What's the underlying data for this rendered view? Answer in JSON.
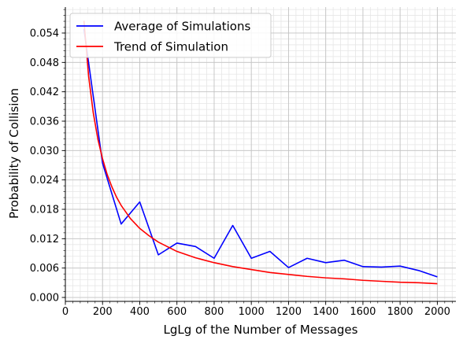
{
  "chart_data": {
    "type": "line",
    "xlabel": "LgLg of the Number of Messages",
    "ylabel": "Probability of Collision",
    "xlim": [
      0,
      2100
    ],
    "ylim": [
      -0.0008,
      0.0593
    ],
    "x_ticks": [
      0,
      200,
      400,
      600,
      800,
      1000,
      1200,
      1400,
      1600,
      1800,
      2000
    ],
    "y_ticks": [
      0.0,
      0.006,
      0.012,
      0.018,
      0.024,
      0.03,
      0.036,
      0.042,
      0.048,
      0.054
    ],
    "x_tick_labels": [
      "0",
      "200",
      "400",
      "600",
      "800",
      "1000",
      "1200",
      "1400",
      "1600",
      "1800",
      "2000"
    ],
    "y_tick_labels": [
      "0.000",
      "0.006",
      "0.012",
      "0.018",
      "0.024",
      "0.030",
      "0.036",
      "0.042",
      "0.048",
      "0.054"
    ],
    "grid": true,
    "minor_grid": true,
    "legend_position": "top-left",
    "series": [
      {
        "name": "Average of Simulations",
        "color": "#0000ff",
        "x": [
          100,
          200,
          300,
          400,
          500,
          600,
          700,
          800,
          900,
          1000,
          1100,
          1200,
          1300,
          1400,
          1500,
          1600,
          1700,
          1800,
          1900,
          2000
        ],
        "y": [
          0.0548,
          0.0274,
          0.015,
          0.0195,
          0.0087,
          0.0111,
          0.0104,
          0.008,
          0.0147,
          0.008,
          0.0094,
          0.0061,
          0.008,
          0.0071,
          0.0076,
          0.0063,
          0.0062,
          0.0064,
          0.0055,
          0.0042
        ]
      },
      {
        "name": "Trend of Simulation",
        "color": "#ff0000",
        "x": [
          100,
          125,
          150,
          175,
          200,
          225,
          250,
          275,
          300,
          350,
          400,
          450,
          500,
          600,
          700,
          800,
          900,
          1000,
          1100,
          1200,
          1300,
          1400,
          1500,
          1600,
          1700,
          1800,
          1900,
          2000
        ],
        "y": [
          0.0565,
          0.0452,
          0.0377,
          0.0323,
          0.0283,
          0.0251,
          0.0226,
          0.0205,
          0.0188,
          0.0161,
          0.0141,
          0.0126,
          0.0113,
          0.0094,
          0.0081,
          0.0071,
          0.0063,
          0.0057,
          0.0051,
          0.0047,
          0.0043,
          0.004,
          0.0038,
          0.0035,
          0.0033,
          0.0031,
          0.003,
          0.0028
        ]
      }
    ]
  }
}
